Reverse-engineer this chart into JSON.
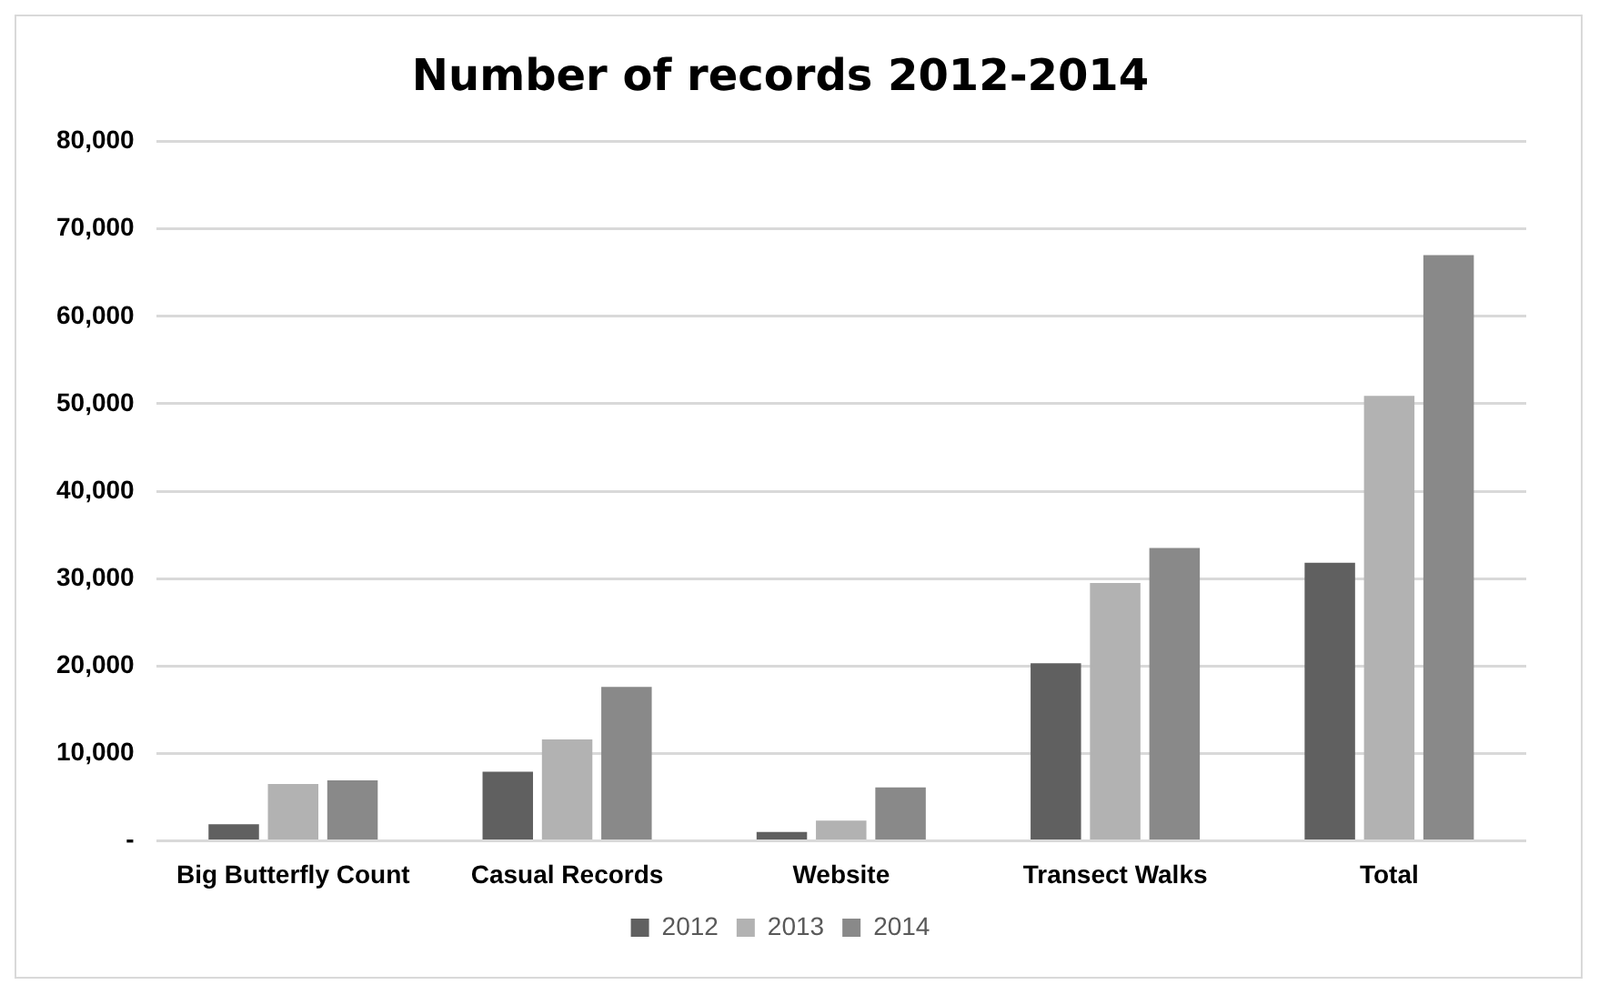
{
  "chart_data": {
    "type": "bar",
    "title": "Number of records 2012-2014",
    "categories": [
      "Big Butterfly Count",
      "Casual Records",
      "Website",
      "Transect Walks",
      "Total"
    ],
    "series": [
      {
        "name": "2012",
        "color": "#606060",
        "values": [
          1900,
          7900,
          1000,
          20300,
          31800
        ]
      },
      {
        "name": "2013",
        "color": "#b2b2b2",
        "values": [
          6500,
          11600,
          2300,
          29500,
          50900
        ]
      },
      {
        "name": "2014",
        "color": "#898989",
        "values": [
          6900,
          17600,
          6100,
          33500,
          67000
        ]
      }
    ],
    "ylim": [
      0,
      80000
    ],
    "yticks": [
      {
        "value": 0,
        "label": "-"
      },
      {
        "value": 10000,
        "label": "10,000"
      },
      {
        "value": 20000,
        "label": "20,000"
      },
      {
        "value": 30000,
        "label": "30,000"
      },
      {
        "value": 40000,
        "label": "40,000"
      },
      {
        "value": 50000,
        "label": "50,000"
      },
      {
        "value": 60000,
        "label": "60,000"
      },
      {
        "value": 70000,
        "label": "70,000"
      },
      {
        "value": 80000,
        "label": "80,000"
      }
    ],
    "grid": "y",
    "legend": "bottom"
  }
}
